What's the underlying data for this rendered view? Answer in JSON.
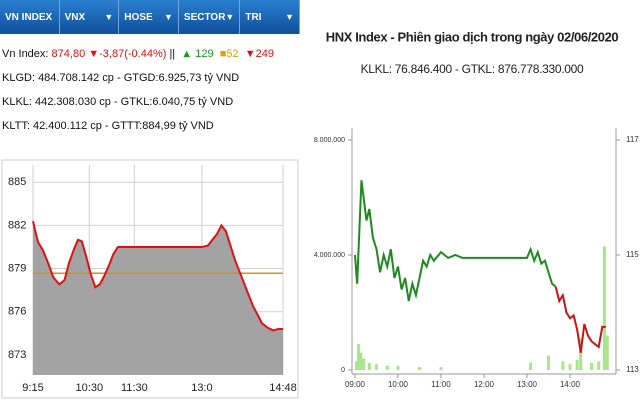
{
  "tabs": [
    "VN INDEX",
    "VNX",
    "HOSE",
    "SECTOR",
    "TRI"
  ],
  "index_line": {
    "label": "Vn Index:",
    "change": "874,80 ▼-3,87(-0.44%)",
    "separator": "||",
    "up": "▲ 129",
    "flat": "■52",
    "down": "▼249"
  },
  "stats": [
    "KLGD: 484.708.142 cp - GTGD:6.925,73 tỷ VND",
    "KLKL: 442.308.030 cp - GTKL:6.040,75 tỷ VND",
    "KLTT: 42.400.112 cp - GTTT:884,99 tỷ VND"
  ],
  "chart_data": [
    {
      "type": "line",
      "x": [
        "9:15",
        "9:18",
        "9:22",
        "9:28",
        "9:35",
        "9:42",
        "9:50",
        "9:57",
        "10:03",
        "10:10",
        "10:15",
        "10:20",
        "10:26",
        "10:32",
        "10:38",
        "10:44",
        "10:50",
        "10:56",
        "11:02",
        "11:08",
        "11:20",
        "11:30",
        "13:00",
        "13:08",
        "13:14",
        "13:20",
        "13:26",
        "13:32",
        "13:38",
        "13:44",
        "13:50",
        "13:56",
        "14:02",
        "14:08",
        "14:14",
        "14:20",
        "14:27",
        "14:35",
        "14:42",
        "14:48"
      ],
      "series": [
        {
          "color": "#e01010",
          "values": [
            882.3,
            881.6,
            880.8,
            880.3,
            879.4,
            878.4,
            877.9,
            878.2,
            879.4,
            880.4,
            881.0,
            880.9,
            879.8,
            878.6,
            877.7,
            877.9,
            878.5,
            879.2,
            880.0,
            880.5,
            880.5,
            880.5,
            880.5,
            880.6,
            881.0,
            881.4,
            882.0,
            881.6,
            880.6,
            879.6,
            878.8,
            878.0,
            877.2,
            876.4,
            875.8,
            875.2,
            874.9,
            874.7,
            874.8,
            874.8
          ]
        }
      ],
      "area_color": "#a3a3a3",
      "reference": 878.67,
      "reference_color": "#d4901c",
      "xlim": [
        "9:15",
        "14:48"
      ],
      "xticks": [
        "9:15",
        "10:30",
        "11:30",
        "13:0",
        "14:48"
      ],
      "ylim": [
        871.6,
        886.2
      ],
      "yticks": [
        885,
        882,
        879,
        876,
        873
      ],
      "grid": true
    },
    {
      "type": "line",
      "title": "HNX Index - Phiên giao dịch trong ngày 02/06/2020",
      "subtitle": "KLKL: 76.846.400 - GTKL: 876.778.330.000",
      "x": [
        "09:00",
        "09:03",
        "09:06",
        "09:09",
        "09:12",
        "09:16",
        "09:20",
        "09:25",
        "09:30",
        "09:35",
        "09:40",
        "09:45",
        "09:50",
        "09:55",
        "10:00",
        "10:05",
        "10:10",
        "10:15",
        "10:20",
        "10:25",
        "10:30",
        "10:35",
        "10:40",
        "10:45",
        "10:50",
        "11:00",
        "11:10",
        "11:20",
        "11:30",
        "13:00",
        "13:05",
        "13:10",
        "13:15",
        "13:20",
        "13:25",
        "13:30",
        "13:35",
        "13:40",
        "13:45",
        "13:50",
        "13:55",
        "14:00",
        "14:05",
        "14:10",
        "14:15",
        "14:20",
        "14:25",
        "14:30",
        "14:35",
        "14:40",
        "14:45",
        "14:50"
      ],
      "series": [
        {
          "color": "#1e8a1e",
          "axis": "y2",
          "values": [
            115.0,
            114.5,
            115.4,
            116.3,
            116.0,
            115.6,
            115.8,
            115.3,
            115.1,
            114.7,
            115.0,
            114.8,
            115.1,
            114.6,
            114.8,
            114.4,
            114.6,
            114.2,
            114.5,
            114.3,
            114.6,
            114.9,
            114.8,
            115.0,
            114.9,
            115.05,
            114.95,
            115.0,
            114.95,
            114.95,
            115.1,
            114.9,
            115.05,
            114.85,
            114.9,
            114.7,
            114.5,
            114.45,
            null,
            null,
            null,
            null,
            null,
            null,
            null,
            null,
            null,
            null,
            null,
            null,
            null,
            null
          ]
        },
        {
          "color": "#c81414",
          "axis": "y2",
          "values": [
            null,
            null,
            null,
            null,
            null,
            null,
            null,
            null,
            null,
            null,
            null,
            null,
            null,
            null,
            null,
            null,
            null,
            null,
            null,
            null,
            null,
            null,
            null,
            null,
            null,
            null,
            null,
            null,
            null,
            null,
            null,
            null,
            null,
            null,
            null,
            null,
            null,
            114.45,
            114.2,
            114.3,
            114.0,
            113.9,
            113.95,
            113.7,
            113.3,
            113.8,
            113.6,
            113.5,
            113.45,
            113.4,
            113.75,
            113.75
          ]
        }
      ],
      "bar_x": [
        "09:02",
        "09:05",
        "09:08",
        "09:12",
        "09:20",
        "09:30",
        "09:45",
        "10:00",
        "10:30",
        "11:00",
        "13:05",
        "13:30",
        "13:50",
        "14:00",
        "14:10",
        "14:15",
        "14:30",
        "14:40",
        "14:48",
        "14:52"
      ],
      "bar_values": [
        300000,
        900000,
        600000,
        400000,
        250000,
        200000,
        150000,
        150000,
        100000,
        100000,
        250000,
        500000,
        300000,
        200000,
        350000,
        1100000,
        250000,
        300000,
        4300000,
        1200000
      ],
      "bar_color": "#a8e68a",
      "xlim": [
        "09:00",
        "15:00"
      ],
      "xticks": [
        "09:00",
        "10:00",
        "11:00",
        "12:00",
        "13:00",
        "14:00"
      ],
      "ylim": [
        0,
        8000000
      ],
      "yticks": [
        {
          "value": 8000000,
          "label": "8.000.000"
        },
        {
          "value": 4000000,
          "label": "4.000.000"
        },
        0
      ],
      "y2lim": [
        113,
        117
      ],
      "y2ticks": [
        117,
        115,
        113
      ]
    }
  ]
}
